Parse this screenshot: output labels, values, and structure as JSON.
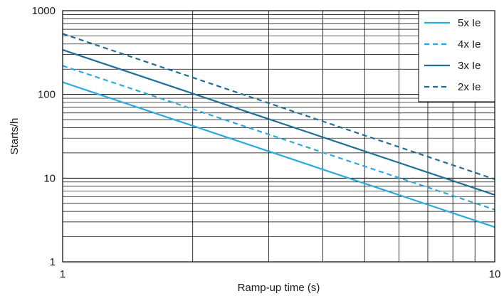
{
  "chart_data": {
    "type": "line",
    "xlabel": "Ramp-up time (s)",
    "ylabel": "Starts/h",
    "x_scale": "log",
    "y_scale": "log",
    "xlim": [
      1,
      10
    ],
    "ylim": [
      1,
      1000
    ],
    "x_ticks": [
      {
        "value": 1,
        "label": "1"
      },
      {
        "value": 10,
        "label": "10"
      }
    ],
    "y_ticks": [
      {
        "value": 1,
        "label": "1"
      },
      {
        "value": 10,
        "label": "10"
      },
      {
        "value": 100,
        "label": "100"
      },
      {
        "value": 1000,
        "label": "1000"
      }
    ],
    "grid": true,
    "legend_position": "top-right",
    "series": [
      {
        "name": "5x Ie",
        "color": "#29abe2",
        "style": "solid",
        "x": [
          1,
          10
        ],
        "y": [
          140,
          2.6
        ]
      },
      {
        "name": "4x Ie",
        "color": "#29abe2",
        "style": "dashed",
        "x": [
          1,
          10
        ],
        "y": [
          220,
          4.2
        ]
      },
      {
        "name": "3x Ie",
        "color": "#1f6f98",
        "style": "solid",
        "x": [
          1,
          10
        ],
        "y": [
          340,
          6.3
        ]
      },
      {
        "name": "2x Ie",
        "color": "#1f6f98",
        "style": "dashed",
        "x": [
          1,
          10
        ],
        "y": [
          530,
          9.7
        ]
      }
    ]
  }
}
